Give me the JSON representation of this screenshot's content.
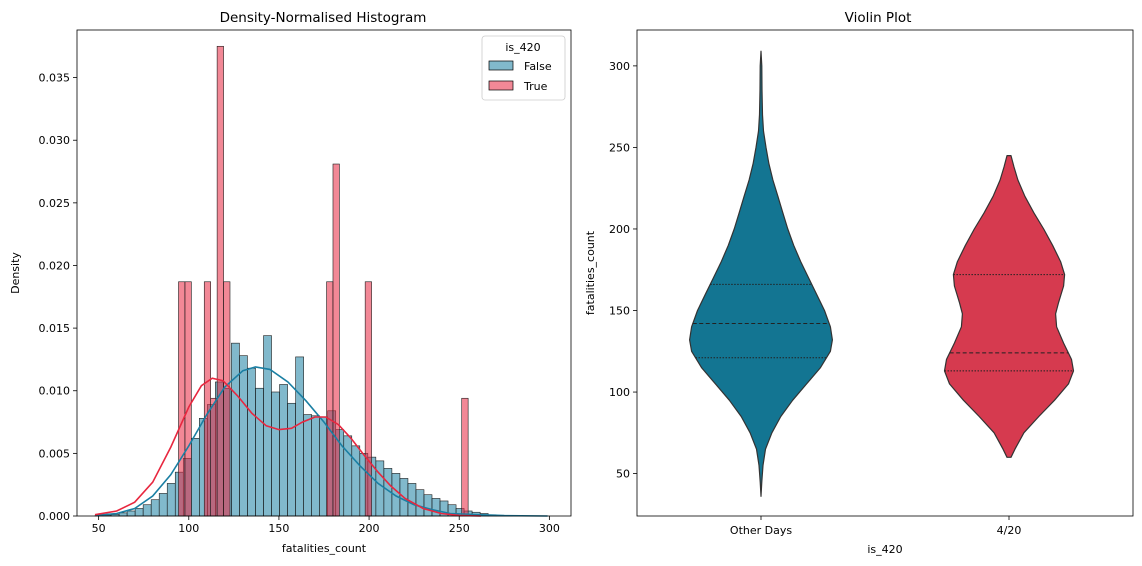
{
  "chart_data": [
    {
      "type": "histogram",
      "title": "Density-Normalised Histogram",
      "xlabel": "fatalities_count",
      "ylabel": "Density",
      "xlim": [
        38,
        312
      ],
      "ylim": [
        0,
        0.0388
      ],
      "xticks": [
        50,
        100,
        150,
        200,
        250,
        300
      ],
      "yticks": [
        0.0,
        0.005,
        0.01,
        0.015,
        0.02,
        0.025,
        0.03,
        0.035
      ],
      "ytick_labels": [
        "0.000",
        "0.005",
        "0.010",
        "0.015",
        "0.020",
        "0.025",
        "0.030",
        "0.035"
      ],
      "legend": {
        "title": "is_420",
        "placement": "top-right",
        "entries": [
          "False",
          "True"
        ]
      },
      "colors": {
        "False": "#1a7fa3",
        "True": "#e8273f"
      },
      "series": [
        {
          "name": "False",
          "bin_width": 4.45,
          "x_start": 48.0,
          "values": [
            3e-05,
            8e-05,
            0.00012,
            0.00025,
            0.0004,
            0.0006,
            0.0009,
            0.0013,
            0.0018,
            0.0026,
            0.0035,
            0.0046,
            0.0062,
            0.0078,
            0.0089,
            0.0107,
            0.0102,
            0.0138,
            0.0128,
            0.0118,
            0.0102,
            0.0144,
            0.0099,
            0.0105,
            0.009,
            0.0127,
            0.0081,
            0.008,
            0.0079,
            0.0084,
            0.0069,
            0.0064,
            0.0056,
            0.005,
            0.0047,
            0.0044,
            0.0038,
            0.0034,
            0.003,
            0.0026,
            0.0021,
            0.0017,
            0.0014,
            0.0012,
            0.0009,
            0.0006,
            0.0004,
            0.0003,
            0.0002,
            0.0001,
            5e-05,
            2e-05
          ]
        },
        {
          "name": "True",
          "bin_width": 3.57,
          "x_start": 94.3,
          "values": [
            0.0187,
            0.0187,
            0.0,
            0.0,
            0.0187,
            0.0094,
            0.0375,
            0.0187,
            0.0,
            0.0,
            0.0,
            0.0,
            0.0,
            0.0,
            0.0,
            0.0,
            0.0,
            0.0,
            0.0,
            0.0,
            0.0,
            0.0,
            0.0,
            0.0187,
            0.0281,
            0.0,
            0.0,
            0.0,
            0.0,
            0.0187,
            0.0,
            0.0,
            0.0,
            0.0,
            0.0,
            0.0,
            0.0,
            0.0,
            0.0,
            0.0,
            0.0,
            0.0,
            0.0,
            0.0,
            0.0094
          ]
        }
      ],
      "kde": [
        {
          "name": "False",
          "points": [
            [
              48,
              5e-05
            ],
            [
              60,
              0.0002
            ],
            [
              70,
              0.0006
            ],
            [
              80,
              0.0016
            ],
            [
              90,
              0.0033
            ],
            [
              100,
              0.0056
            ],
            [
              110,
              0.0081
            ],
            [
              120,
              0.0103
            ],
            [
              130,
              0.0116
            ],
            [
              137,
              0.0119
            ],
            [
              145,
              0.0117
            ],
            [
              155,
              0.0107
            ],
            [
              165,
              0.0092
            ],
            [
              175,
              0.0075
            ],
            [
              185,
              0.0056
            ],
            [
              195,
              0.004
            ],
            [
              205,
              0.0026
            ],
            [
              215,
              0.0016
            ],
            [
              225,
              0.0009
            ],
            [
              235,
              0.0005
            ],
            [
              245,
              0.0002
            ],
            [
              260,
              0.0001
            ],
            [
              275,
              3e-05
            ],
            [
              299,
              0.0
            ]
          ]
        },
        {
          "name": "True",
          "points": [
            [
              48,
              0.0001
            ],
            [
              60,
              0.0004
            ],
            [
              70,
              0.0011
            ],
            [
              80,
              0.0027
            ],
            [
              90,
              0.0055
            ],
            [
              100,
              0.0087
            ],
            [
              107,
              0.0104
            ],
            [
              113,
              0.011
            ],
            [
              119,
              0.0108
            ],
            [
              127,
              0.0096
            ],
            [
              135,
              0.0082
            ],
            [
              143,
              0.0072
            ],
            [
              150,
              0.0069
            ],
            [
              157,
              0.007
            ],
            [
              163,
              0.0075
            ],
            [
              170,
              0.0079
            ],
            [
              176,
              0.0079
            ],
            [
              183,
              0.0073
            ],
            [
              190,
              0.0062
            ],
            [
              197,
              0.0049
            ],
            [
              205,
              0.0035
            ],
            [
              212,
              0.0024
            ],
            [
              220,
              0.0014
            ],
            [
              230,
              0.0006
            ],
            [
              240,
              0.0002
            ],
            [
              250,
              5e-05
            ],
            [
              262,
              0.0
            ]
          ]
        }
      ]
    },
    {
      "type": "violin",
      "title": "Violin Plot",
      "xlabel": "is_420",
      "ylabel": "fatalities_count",
      "categories": [
        "Other Days",
        "4/20"
      ],
      "ylim": [
        24,
        322
      ],
      "yticks": [
        50,
        100,
        150,
        200,
        250,
        300
      ],
      "colors": {
        "Other Days": "#137592",
        "4/20": "#d63a4f"
      },
      "violins": [
        {
          "category": "Other Days",
          "min": 36,
          "max": 309,
          "quartiles": [
            121,
            142,
            166
          ],
          "profile": [
            [
              36,
              0.0
            ],
            [
              45,
              0.008
            ],
            [
              55,
              0.02
            ],
            [
              65,
              0.045
            ],
            [
              75,
              0.11
            ],
            [
              85,
              0.2
            ],
            [
              95,
              0.32
            ],
            [
              105,
              0.46
            ],
            [
              115,
              0.6
            ],
            [
              125,
              0.7
            ],
            [
              132,
              0.72
            ],
            [
              140,
              0.7
            ],
            [
              150,
              0.64
            ],
            [
              160,
              0.56
            ],
            [
              170,
              0.48
            ],
            [
              180,
              0.4
            ],
            [
              190,
              0.33
            ],
            [
              200,
              0.27
            ],
            [
              210,
              0.22
            ],
            [
              220,
              0.17
            ],
            [
              230,
              0.12
            ],
            [
              240,
              0.08
            ],
            [
              250,
              0.05
            ],
            [
              260,
              0.025
            ],
            [
              270,
              0.015
            ],
            [
              285,
              0.01
            ],
            [
              300,
              0.008
            ],
            [
              309,
              0.0
            ]
          ]
        },
        {
          "category": "4/20",
          "min": 60,
          "max": 245,
          "quartiles": [
            113,
            124,
            172
          ],
          "profile": [
            [
              60,
              0.02
            ],
            [
              65,
              0.06
            ],
            [
              75,
              0.15
            ],
            [
              85,
              0.3
            ],
            [
              95,
              0.46
            ],
            [
              105,
              0.6
            ],
            [
              113,
              0.65
            ],
            [
              120,
              0.63
            ],
            [
              130,
              0.55
            ],
            [
              140,
              0.48
            ],
            [
              148,
              0.47
            ],
            [
              155,
              0.5
            ],
            [
              165,
              0.55
            ],
            [
              172,
              0.56
            ],
            [
              180,
              0.52
            ],
            [
              190,
              0.44
            ],
            [
              200,
              0.35
            ],
            [
              210,
              0.25
            ],
            [
              220,
              0.16
            ],
            [
              230,
              0.09
            ],
            [
              238,
              0.05
            ],
            [
              245,
              0.02
            ]
          ]
        }
      ]
    }
  ]
}
